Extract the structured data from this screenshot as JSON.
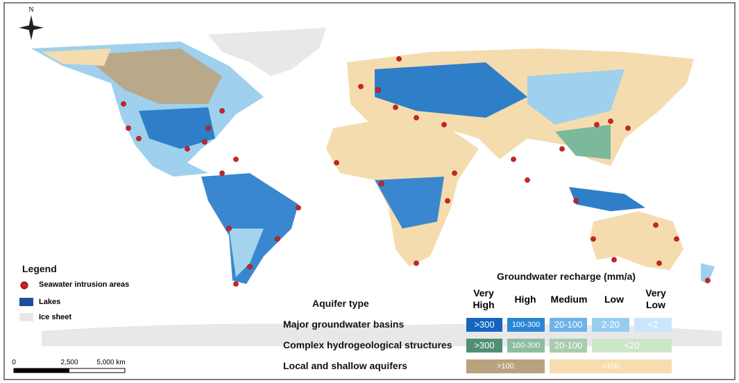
{
  "compass": "N",
  "legend": {
    "title": "Legend",
    "items": [
      "Seawater intrusion areas",
      "Lakes",
      "Ice sheet"
    ]
  },
  "scale_bar": [
    "0",
    "2,500",
    "5,000 km"
  ],
  "recharge_table": {
    "title": "Groundwater recharge (mm/a)",
    "row_header": "Aquifer type",
    "columns": [
      "Very High",
      "High",
      "Medium",
      "Low",
      "Very Low"
    ],
    "rows": [
      {
        "label": "Major groundwater basins",
        "cells": [
          ">300",
          "100-300",
          "20-100",
          "2-20",
          "<2"
        ]
      },
      {
        "label": "Complex hydrogeological structures",
        "cells": [
          ">300",
          "100-300",
          "20-100",
          "<20"
        ]
      },
      {
        "label": "Local and shallow aquifers",
        "cells": [
          ">100",
          "<100"
        ]
      }
    ]
  }
}
